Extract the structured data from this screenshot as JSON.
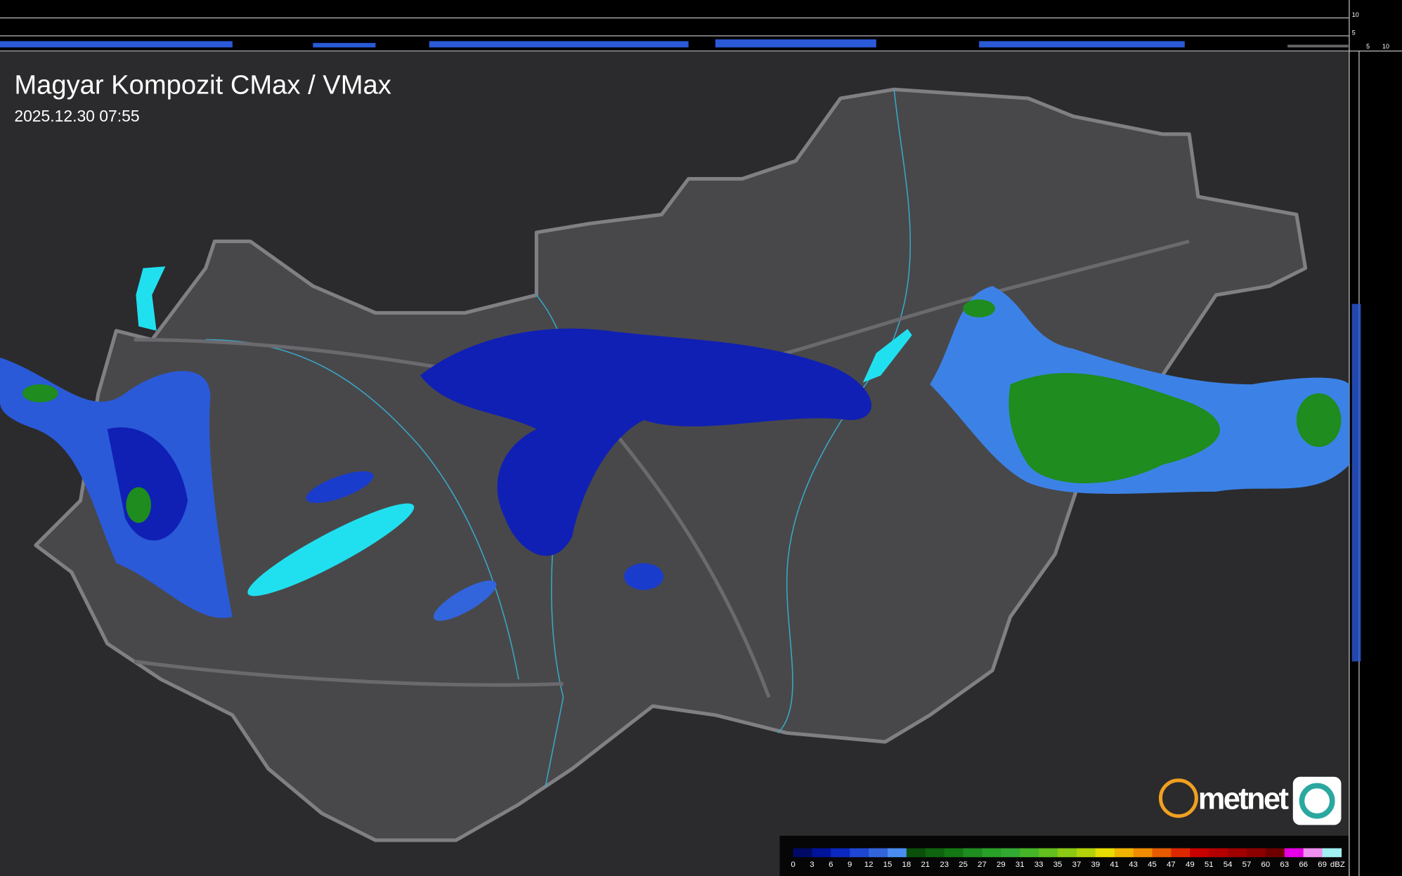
{
  "header": {
    "title": "Magyar Kompozit CMax / VMax",
    "timestamp": "2025.12.30 07:55"
  },
  "side_scale": {
    "top_labels": [
      "10",
      "5"
    ],
    "bottom_labels": [
      "5",
      "10"
    ]
  },
  "logo": "metnet",
  "legend": {
    "unit": "dBZ",
    "ticks": [
      0,
      3,
      6,
      9,
      12,
      15,
      18,
      21,
      23,
      25,
      27,
      29,
      31,
      33,
      35,
      37,
      39,
      41,
      43,
      45,
      47,
      49,
      51,
      54,
      57,
      60,
      63,
      66,
      69
    ],
    "colors": [
      "#000a64",
      "#00139a",
      "#0a28c0",
      "#1e46d2",
      "#3264dc",
      "#4b8cf0",
      "#0a500a",
      "#0f640f",
      "#147814",
      "#1e8c1e",
      "#28a028",
      "#32aa32",
      "#46b428",
      "#64be1e",
      "#8cc814",
      "#b4d20a",
      "#e6dc00",
      "#f0b400",
      "#f08c00",
      "#e65a00",
      "#dc2800",
      "#c80000",
      "#b40000",
      "#a00000",
      "#8c0000",
      "#6e0000",
      "#e600e6",
      "#f090f0",
      "#a0f0f0"
    ]
  }
}
